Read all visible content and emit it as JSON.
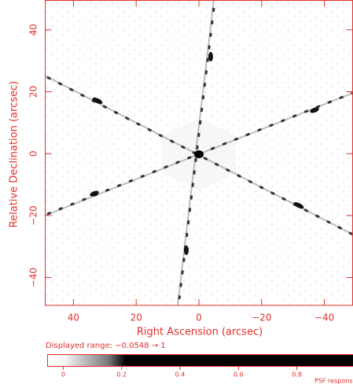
{
  "chart_data": {
    "type": "image",
    "x_label": "Right Ascension  (arcsec)",
    "y_label": "Relative Declination  (arcsec)",
    "xlim": [
      49,
      -49
    ],
    "ylim": [
      -49,
      49.5
    ],
    "xticks": [
      40,
      20,
      0,
      {
        "value": -20,
        "label": "−20"
      },
      {
        "value": -40,
        "label": "−40"
      }
    ],
    "yticks": [
      {
        "value": -40,
        "label": "−40"
      },
      {
        "value": -20,
        "label": "−20"
      },
      0,
      20,
      40
    ],
    "axis_color": "#e0302c",
    "colorbar": {
      "text": "Displayed range: −0.0548 → 1",
      "lim": [
        -0.0548,
        1
      ],
      "ticks": [
        0,
        0.2,
        0.4,
        0.6,
        0.8
      ],
      "label": "PSF response"
    }
  }
}
